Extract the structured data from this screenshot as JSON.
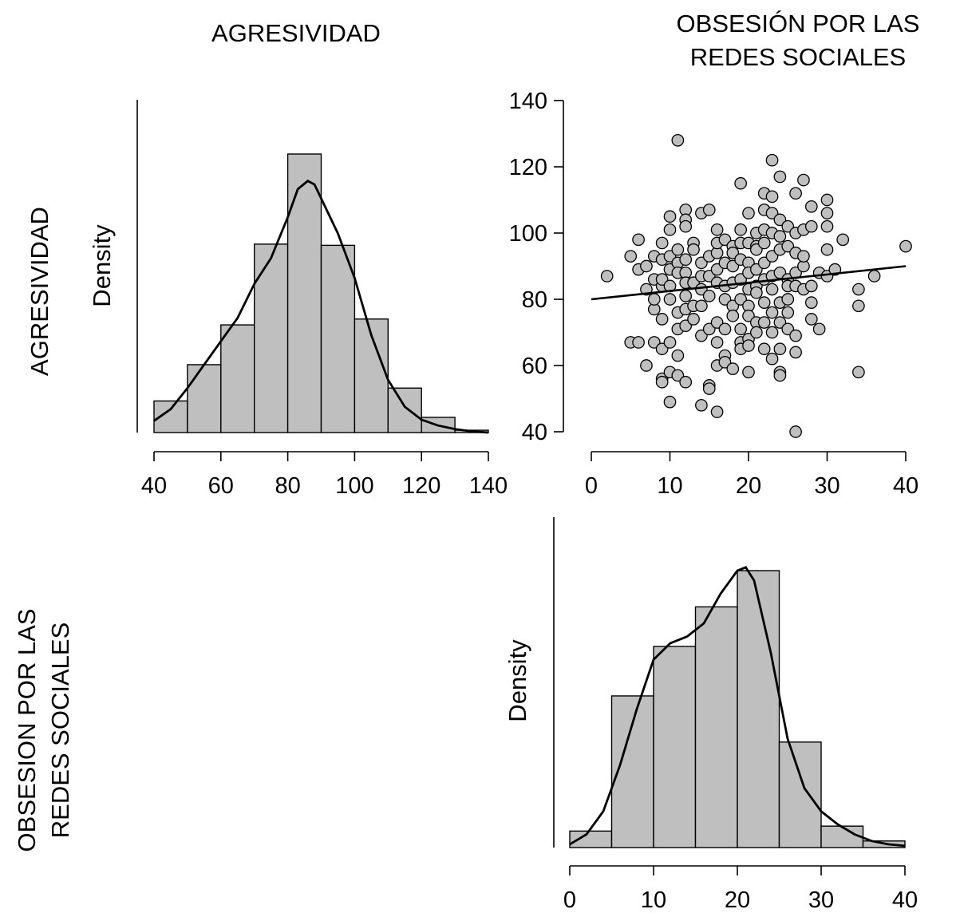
{
  "headers": {
    "col1": "AGRESIVIDAD",
    "col2_line1": "OBSESIÓN POR LAS",
    "col2_line2": "REDES SOCIALES",
    "row1": "AGRESIVIDAD",
    "row2_line1": "OBSESION POR LAS",
    "row2_line2": "REDES SOCIALES"
  },
  "chart_data": [
    {
      "type": "bar",
      "panel": "histogram-agresividad",
      "ylabel": "Density",
      "xlim": [
        40,
        140
      ],
      "xticks": [
        40,
        60,
        80,
        100,
        120,
        140
      ],
      "bin_edges": [
        40,
        50,
        60,
        70,
        80,
        90,
        100,
        110,
        120,
        130,
        140
      ],
      "values": [
        0.0027,
        0.0058,
        0.0092,
        0.0161,
        0.0238,
        0.016,
        0.0097,
        0.0038,
        0.0013,
        0.0002
      ],
      "density_curve": {
        "x": [
          40,
          45,
          50,
          55,
          60,
          65,
          70,
          75,
          80,
          83,
          86,
          88,
          90,
          95,
          100,
          105,
          110,
          115,
          120,
          125,
          130,
          135,
          140
        ],
        "y": [
          0.001,
          0.002,
          0.0038,
          0.0058,
          0.0078,
          0.0098,
          0.0127,
          0.0149,
          0.0184,
          0.0208,
          0.0215,
          0.0212,
          0.02,
          0.017,
          0.0132,
          0.0083,
          0.0045,
          0.0022,
          0.0011,
          0.0006,
          0.0003,
          0.0001,
          0.0
        ]
      }
    },
    {
      "type": "scatter",
      "panel": "scatter-obsesion-vs-agresividad",
      "xlim": [
        0,
        40
      ],
      "ylim": [
        40,
        140
      ],
      "xticks": [
        0,
        10,
        20,
        30,
        40
      ],
      "yticks": [
        40,
        60,
        80,
        100,
        120,
        140
      ],
      "points": [
        [
          2,
          87
        ],
        [
          5,
          93
        ],
        [
          5,
          67
        ],
        [
          6,
          98
        ],
        [
          6,
          67
        ],
        [
          6,
          89
        ],
        [
          7,
          83
        ],
        [
          7,
          90
        ],
        [
          7,
          60
        ],
        [
          8,
          86
        ],
        [
          8,
          77
        ],
        [
          8,
          67
        ],
        [
          8,
          93
        ],
        [
          8,
          80
        ],
        [
          9,
          56
        ],
        [
          9,
          55
        ],
        [
          9,
          74
        ],
        [
          9,
          92
        ],
        [
          9,
          84
        ],
        [
          9,
          65
        ],
        [
          9,
          97
        ],
        [
          9,
          86
        ],
        [
          10,
          101
        ],
        [
          10,
          105
        ],
        [
          10,
          89
        ],
        [
          10,
          84
        ],
        [
          10,
          80
        ],
        [
          10,
          67
        ],
        [
          10,
          58
        ],
        [
          10,
          49
        ],
        [
          10,
          93
        ],
        [
          11,
          128
        ],
        [
          11,
          95
        ],
        [
          11,
          91
        ],
        [
          11,
          76
        ],
        [
          11,
          71
        ],
        [
          11,
          63
        ],
        [
          11,
          57
        ],
        [
          11,
          88
        ],
        [
          12,
          107
        ],
        [
          12,
          104
        ],
        [
          12,
          102
        ],
        [
          12,
          92
        ],
        [
          12,
          88
        ],
        [
          12,
          85
        ],
        [
          12,
          81
        ],
        [
          12,
          77
        ],
        [
          12,
          72
        ],
        [
          12,
          55
        ],
        [
          13,
          97
        ],
        [
          13,
          85
        ],
        [
          13,
          78
        ],
        [
          13,
          74
        ],
        [
          13,
          95
        ],
        [
          14,
          106
        ],
        [
          14,
          91
        ],
        [
          14,
          87
        ],
        [
          14,
          78
        ],
        [
          14,
          69
        ],
        [
          14,
          48
        ],
        [
          14,
          83
        ],
        [
          15,
          107
        ],
        [
          15,
          93
        ],
        [
          15,
          87
        ],
        [
          15,
          71
        ],
        [
          15,
          54
        ],
        [
          15,
          53
        ],
        [
          15,
          81
        ],
        [
          16,
          101
        ],
        [
          16,
          94
        ],
        [
          16,
          89
        ],
        [
          16,
          85
        ],
        [
          16,
          73
        ],
        [
          16,
          67
        ],
        [
          16,
          60
        ],
        [
          16,
          46
        ],
        [
          16,
          97
        ],
        [
          17,
          98
        ],
        [
          17,
          91
        ],
        [
          17,
          84
        ],
        [
          17,
          80
        ],
        [
          17,
          71
        ],
        [
          17,
          63
        ],
        [
          17,
          61
        ],
        [
          18,
          96
        ],
        [
          18,
          90
        ],
        [
          18,
          85
        ],
        [
          18,
          78
        ],
        [
          18,
          75
        ],
        [
          18,
          59
        ],
        [
          18,
          94
        ],
        [
          19,
          115
        ],
        [
          19,
          101
        ],
        [
          19,
          92
        ],
        [
          19,
          86
        ],
        [
          19,
          80
        ],
        [
          19,
          71
        ],
        [
          19,
          67
        ],
        [
          19,
          65
        ],
        [
          19,
          97
        ],
        [
          20,
          106
        ],
        [
          20,
          97
        ],
        [
          20,
          91
        ],
        [
          20,
          88
        ],
        [
          20,
          83
        ],
        [
          20,
          78
        ],
        [
          20,
          75
        ],
        [
          20,
          68
        ],
        [
          20,
          66
        ],
        [
          20,
          58
        ],
        [
          21,
          100
        ],
        [
          21,
          96
        ],
        [
          21,
          89
        ],
        [
          21,
          84
        ],
        [
          21,
          82
        ],
        [
          21,
          73
        ],
        [
          21,
          70
        ],
        [
          21,
          95
        ],
        [
          22,
          112
        ],
        [
          22,
          107
        ],
        [
          22,
          101
        ],
        [
          22,
          91
        ],
        [
          22,
          86
        ],
        [
          22,
          79
        ],
        [
          22,
          73
        ],
        [
          22,
          65
        ],
        [
          22,
          97
        ],
        [
          23,
          122
        ],
        [
          23,
          111
        ],
        [
          23,
          106
        ],
        [
          23,
          100
        ],
        [
          23,
          93
        ],
        [
          23,
          87
        ],
        [
          23,
          83
        ],
        [
          23,
          76
        ],
        [
          23,
          70
        ],
        [
          23,
          62
        ],
        [
          24,
          117
        ],
        [
          24,
          104
        ],
        [
          24,
          95
        ],
        [
          24,
          88
        ],
        [
          24,
          79
        ],
        [
          24,
          73
        ],
        [
          24,
          65
        ],
        [
          24,
          58
        ],
        [
          24,
          57
        ],
        [
          24,
          99
        ],
        [
          25,
          102
        ],
        [
          25,
          96
        ],
        [
          25,
          86
        ],
        [
          25,
          80
        ],
        [
          25,
          76
        ],
        [
          25,
          71
        ],
        [
          25,
          84
        ],
        [
          26,
          112
        ],
        [
          26,
          100
        ],
        [
          26,
          94
        ],
        [
          26,
          84
        ],
        [
          26,
          69
        ],
        [
          26,
          64
        ],
        [
          26,
          40
        ],
        [
          26,
          88
        ],
        [
          27,
          116
        ],
        [
          27,
          101
        ],
        [
          27,
          90
        ],
        [
          27,
          83
        ],
        [
          27,
          93
        ],
        [
          28,
          108
        ],
        [
          28,
          102
        ],
        [
          28,
          84
        ],
        [
          28,
          79
        ],
        [
          28,
          74
        ],
        [
          29,
          88
        ],
        [
          29,
          71
        ],
        [
          30,
          110
        ],
        [
          30,
          106
        ],
        [
          30,
          102
        ],
        [
          30,
          95
        ],
        [
          30,
          87
        ],
        [
          31,
          89
        ],
        [
          32,
          98
        ],
        [
          34,
          83
        ],
        [
          34,
          78
        ],
        [
          34,
          58
        ],
        [
          36,
          87
        ],
        [
          40,
          96
        ]
      ],
      "fit_line": {
        "x": [
          0,
          40
        ],
        "y": [
          80,
          90
        ]
      }
    },
    {
      "type": "bar",
      "panel": "histogram-obsesion",
      "ylabel": "Density",
      "xlim": [
        0,
        40
      ],
      "xticks": [
        0,
        10,
        20,
        30,
        40
      ],
      "bin_edges": [
        0,
        5,
        10,
        15,
        20,
        25,
        30,
        35,
        40
      ],
      "values": [
        0.005,
        0.046,
        0.061,
        0.073,
        0.084,
        0.032,
        0.0065,
        0.002
      ],
      "density_curve": {
        "x": [
          0,
          2,
          4,
          6,
          8,
          10,
          12,
          14,
          16,
          18,
          20,
          21,
          22,
          24,
          26,
          28,
          30,
          32,
          34,
          36,
          38,
          40
        ],
        "y": [
          0.001,
          0.004,
          0.011,
          0.025,
          0.042,
          0.057,
          0.062,
          0.064,
          0.068,
          0.077,
          0.084,
          0.085,
          0.081,
          0.059,
          0.033,
          0.018,
          0.011,
          0.007,
          0.004,
          0.002,
          0.001,
          0.0005
        ]
      }
    }
  ]
}
